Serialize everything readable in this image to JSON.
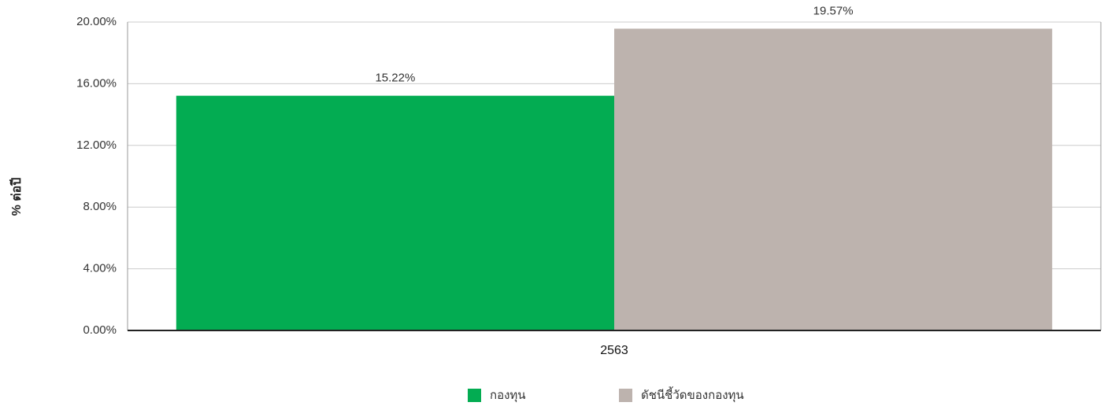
{
  "chart_data": {
    "type": "bar",
    "y_label": "% ต่อปี",
    "categories": [
      "2563"
    ],
    "series": [
      {
        "name": "กองทุน",
        "color": "#03ac52",
        "values": [
          15.22
        ],
        "value_labels": [
          "15.22%"
        ]
      },
      {
        "name": "ดัชนีชี้วัดของกองทุน",
        "color": "#bdb3ae",
        "values": [
          19.57
        ],
        "value_labels": [
          "19.57%"
        ]
      }
    ],
    "ylim": [
      0,
      20
    ],
    "yticks": [
      {
        "value": 0,
        "label": "0.00%"
      },
      {
        "value": 4,
        "label": "4.00%"
      },
      {
        "value": 8,
        "label": "8.00%"
      },
      {
        "value": 12,
        "label": "12.00%"
      },
      {
        "value": 16,
        "label": "16.00%"
      },
      {
        "value": 20,
        "label": "20.00%"
      }
    ],
    "grid": true,
    "legend": "bottom"
  }
}
